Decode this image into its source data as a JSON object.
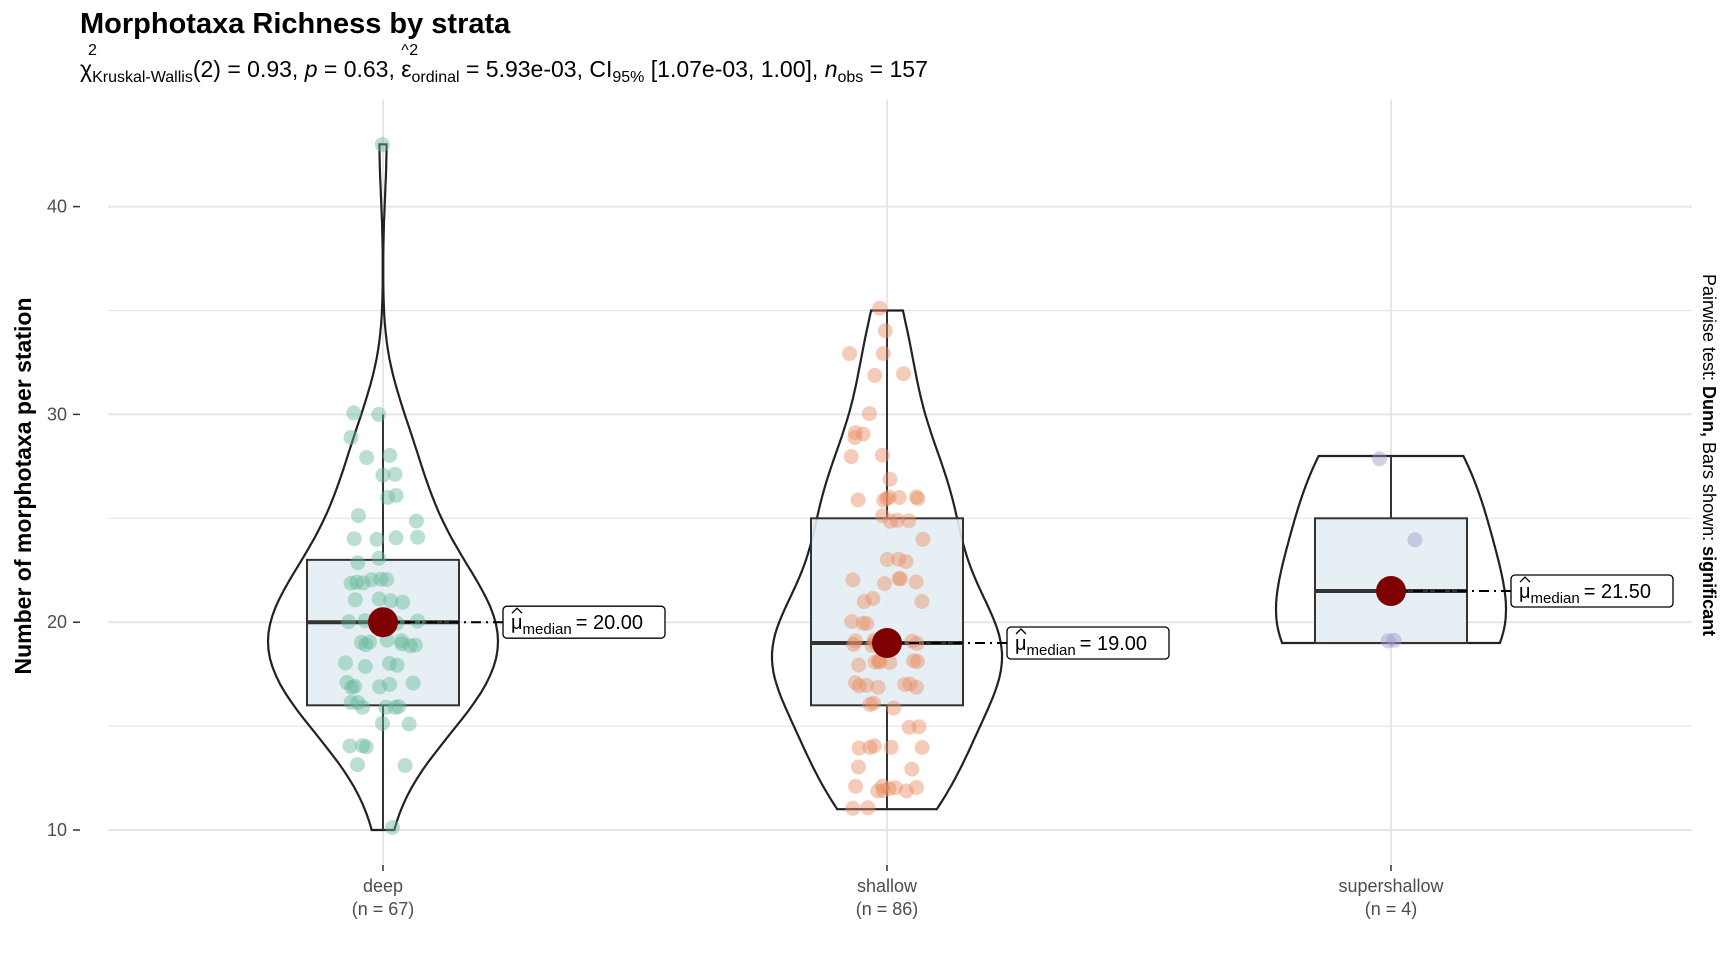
{
  "chart_data": {
    "type": "violin",
    "title": "Morphotaxa Richness by strata",
    "subtitle": {
      "test_symbol": "χ",
      "test_superscript": "2",
      "test_subscript": "Kruskal-Wallis",
      "df_and_stat": "(2) = 0.93, ",
      "p_symbol": "p",
      "p_value": " = 0.63, ",
      "effect_symbol": "ε",
      "effect_hat": "^",
      "effect_superscript": "2",
      "effect_subscript": "ordinal",
      "effect_value": " = 5.93e-03, CI",
      "ci_subscript": "95%",
      "ci_value": " [1.07e-03, 1.00], ",
      "n_symbol": "n",
      "n_subscript": "obs",
      "n_value": " = 157"
    },
    "ylabel": "Number of morphotaxa per station",
    "xlabel": "",
    "right_caption_prefix": "Pairwise test: ",
    "right_caption_test": "Dunn,",
    "right_caption_middle": " Bars shown: ",
    "right_caption_bold": "significant",
    "ylim": [
      8,
      43
    ],
    "yticks": [
      10,
      20,
      30,
      40
    ],
    "grid": true,
    "categories": [
      "deep",
      "shallow",
      "supershallow"
    ],
    "category_counts": [
      "(n = 67)",
      "(n = 86)",
      "(n = 4)"
    ],
    "colors": [
      "#66b89a",
      "#e98e63",
      "#9a98c9"
    ],
    "median_marker_color": "#7f0000",
    "box_fill": "#e3eef3",
    "groups": [
      {
        "name": "deep",
        "box": {
          "q1": 16,
          "median": 20,
          "q3": 23,
          "lower_whisker": 10,
          "upper_whisker": 30
        },
        "violin_range": [
          10,
          43
        ],
        "median_label_value": "= 20.00",
        "points": [
          43,
          30,
          30,
          29,
          28,
          28,
          27,
          27,
          26,
          26,
          25,
          25,
          24,
          24,
          24,
          24,
          23,
          23,
          22,
          22,
          22,
          22,
          22,
          22,
          21,
          21,
          21,
          21,
          20,
          20,
          20,
          20,
          20,
          20,
          20,
          19,
          19,
          19,
          19,
          19,
          19,
          19,
          19,
          18,
          18,
          18,
          18,
          17,
          17,
          17,
          17,
          17,
          17,
          16,
          16,
          16,
          16,
          16,
          16,
          15,
          15,
          14,
          14,
          14,
          13,
          13,
          10
        ]
      },
      {
        "name": "shallow",
        "box": {
          "q1": 16,
          "median": 19,
          "q3": 25,
          "lower_whisker": 11,
          "upper_whisker": 35
        },
        "violin_range": [
          11,
          35
        ],
        "median_label_value": "= 19.00",
        "points": [
          35,
          34,
          33,
          33,
          32,
          32,
          30,
          29,
          29,
          29,
          28,
          28,
          27,
          26,
          26,
          26,
          26,
          26,
          26,
          26,
          25,
          25,
          25,
          25,
          24,
          23,
          23,
          23,
          22,
          22,
          22,
          22,
          22,
          21,
          21,
          21,
          20,
          20,
          20,
          19,
          19,
          19,
          19,
          19,
          19,
          19,
          19,
          19,
          19,
          19,
          18,
          18,
          18,
          18,
          18,
          18,
          18,
          17,
          17,
          17,
          17,
          17,
          17,
          17,
          16,
          16,
          16,
          15,
          15,
          14,
          14,
          14,
          14,
          14,
          13,
          13,
          12,
          12,
          12,
          12,
          12,
          12,
          12,
          12,
          11,
          11
        ]
      },
      {
        "name": "supershallow",
        "box": {
          "q1": 19,
          "median": 21.5,
          "q3": 25,
          "lower_whisker": 19,
          "upper_whisker": 28
        },
        "violin_range": [
          19,
          28
        ],
        "median_label_value": "= 21.50",
        "points": [
          28,
          24,
          19,
          19
        ]
      }
    ],
    "median_label_symbol": "μ",
    "median_label_subscript": "median"
  }
}
